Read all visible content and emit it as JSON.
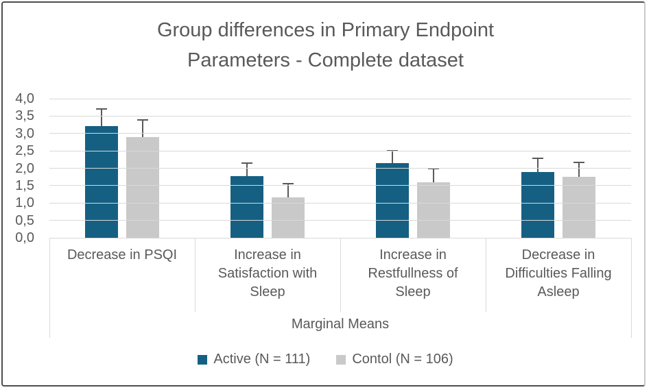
{
  "chart_data": {
    "type": "bar",
    "title": "Group differences in Primary Endpoint Parameters - Complete dataset",
    "title_lines": [
      "Group differences in Primary Endpoint",
      "Parameters - Complete dataset"
    ],
    "categories": [
      "Decrease in PSQI",
      "Increase in Satisfaction with Sleep",
      "Increase in Restfullness of Sleep",
      "Decrease in Difficulties Falling Asleep"
    ],
    "series": [
      {
        "name": "Active (N = 111)",
        "color": "#156082",
        "values": [
          3.22,
          1.77,
          2.14,
          1.89
        ],
        "errors": [
          0.48,
          0.38,
          0.37,
          0.4
        ]
      },
      {
        "name": "Contol (N = 106)",
        "color": "#c9c9c9",
        "values": [
          2.89,
          1.17,
          1.6,
          1.76
        ],
        "errors": [
          0.49,
          0.39,
          0.39,
          0.4
        ]
      }
    ],
    "xlabel": "Marginal Means",
    "ylabel": "",
    "ylim": [
      0,
      4
    ],
    "ytick_step": 0.5,
    "ytick_labels": [
      "0,0",
      "0,5",
      "1,0",
      "1,5",
      "2,0",
      "2,5",
      "3,0",
      "3,5",
      "4,0"
    ],
    "grid": true,
    "legend_position": "bottom",
    "error_bars": true,
    "colors": {
      "text": "#595959",
      "gridline": "#d9d9d9",
      "error_bar": "#595959",
      "frame_border": "#4d4d4d"
    }
  }
}
